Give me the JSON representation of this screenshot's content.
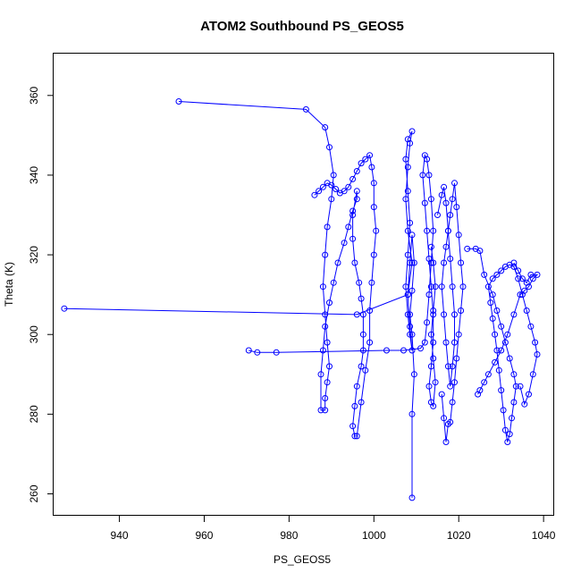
{
  "chart_data": {
    "type": "scatter",
    "title": "ATOM2 Southbound PS_GEOS5",
    "xlabel": "PS_GEOS5",
    "ylabel": "Theta (K)",
    "xlim": [
      924.5,
      1042.5
    ],
    "ylim": [
      254.5,
      370.5
    ],
    "x_ticks": [
      940,
      960,
      980,
      1000,
      1020,
      1040
    ],
    "y_ticks": [
      260,
      280,
      300,
      320,
      340,
      360
    ],
    "grid": false,
    "legend": "none",
    "series_color": "#0000ff",
    "marker": "open-circle",
    "connected": true,
    "series": [
      {
        "x": [
          954,
          984,
          988.5,
          989.5,
          990.5,
          990,
          989,
          988.5,
          988,
          988.5,
          989,
          989.5,
          989,
          988.5,
          988.5,
          987.5,
          987.5,
          988,
          988.5,
          989.5,
          990.5,
          991.5,
          993,
          994,
          995,
          996,
          996,
          995,
          995,
          995.5,
          996.5,
          997,
          997.5,
          997.5,
          997.5,
          997,
          996,
          995.5,
          995,
          995.5,
          996,
          997,
          998,
          999,
          999,
          999.5,
          1000,
          1000.5,
          1000,
          1000,
          999.5,
          999,
          998,
          997,
          996,
          995,
          994,
          993,
          992,
          991,
          990,
          989,
          988,
          987,
          986
        ],
        "y": [
          358.5,
          356.5,
          352,
          347,
          340,
          334,
          327,
          320,
          312,
          305,
          298,
          292,
          288,
          284,
          281,
          281,
          290,
          296,
          302,
          308,
          313,
          318,
          323,
          327,
          331,
          334,
          336,
          330,
          324,
          318,
          313,
          309,
          305,
          300,
          296,
          292,
          287,
          282,
          277,
          274.5,
          274.5,
          283,
          291,
          298,
          306,
          313,
          320,
          326,
          332,
          338,
          342,
          345,
          344,
          343,
          341,
          339,
          337,
          336,
          335.5,
          336.5,
          337.5,
          338,
          337,
          336,
          335
        ]
      },
      {
        "x": [
          927,
          996,
          1008,
          1009,
          1008,
          1007.5,
          1008,
          1008.5,
          1009,
          1008,
          1007.5,
          1008,
          1008.5,
          1008,
          1007.5,
          1008,
          1008.5,
          1009,
          1008.5,
          1008,
          1008.5,
          1009,
          1009.5,
          1009,
          1008.5,
          1009,
          1009.5,
          1009,
          1009
        ],
        "y": [
          306.5,
          305,
          310,
          318,
          326,
          334,
          342,
          348,
          351,
          349,
          344,
          336,
          328,
          320,
          312,
          305,
          300,
          296,
          302,
          310,
          318,
          325,
          318,
          311,
          305,
          300,
          290,
          280,
          259
        ]
      },
      {
        "x": [
          970.5,
          972.5,
          977,
          1003,
          1007,
          1011,
          1012,
          1012.5,
          1013,
          1013.5,
          1014,
          1013.5,
          1013,
          1012.5,
          1012,
          1011.5,
          1012,
          1012.5,
          1013,
          1013.5,
          1014,
          1014,
          1013.5,
          1013,
          1013.5,
          1014,
          1014.5,
          1014,
          1013.5,
          1014,
          1014.5,
          1014,
          1013.5
        ],
        "y": [
          296,
          295.5,
          295.5,
          296,
          296,
          296.5,
          298,
          303,
          310,
          318,
          326,
          334,
          340,
          344,
          345,
          340,
          333,
          326,
          319,
          312,
          305,
          298,
          292,
          287,
          283,
          282,
          288,
          294,
          300,
          306,
          312,
          318,
          322
        ]
      },
      {
        "x": [
          1015,
          1016,
          1016.5,
          1017,
          1017.5,
          1018,
          1018.5,
          1019,
          1019,
          1018.5,
          1018,
          1017.5,
          1017,
          1016.5,
          1016,
          1016.5,
          1017,
          1017.5,
          1018,
          1018.5,
          1019,
          1019.5,
          1020,
          1020.5,
          1021,
          1020.5,
          1020,
          1019.5,
          1019,
          1018.5,
          1018,
          1017.5,
          1017,
          1016.5,
          1016
        ],
        "y": [
          330,
          335,
          337,
          333,
          326,
          319,
          312,
          305,
          298,
          292,
          287,
          292,
          298,
          305,
          312,
          318,
          322,
          326,
          330,
          334,
          338,
          332,
          325,
          318,
          312,
          306,
          300,
          294,
          288,
          283,
          278,
          277.5,
          273,
          279,
          285
        ]
      },
      {
        "x": [
          1022,
          1024,
          1025,
          1026,
          1028,
          1029,
          1030,
          1031,
          1032,
          1033,
          1033.5,
          1033,
          1032.5,
          1032,
          1031.5,
          1031,
          1030.5,
          1030,
          1029.5,
          1029,
          1028.5,
          1028,
          1027.5,
          1027,
          1028,
          1029,
          1030,
          1031,
          1032,
          1033,
          1034,
          1035,
          1036,
          1037,
          1038,
          1038.5,
          1037.5,
          1036.5,
          1035.5,
          1034.5
        ],
        "y": [
          321.5,
          321.5,
          321,
          315,
          310,
          306,
          302,
          298,
          294,
          290,
          287,
          283,
          279,
          275,
          273,
          276,
          281,
          286,
          291,
          296,
          300,
          304,
          308,
          312,
          314,
          315,
          316,
          317,
          317.5,
          317,
          314,
          310,
          306,
          302,
          298,
          295,
          290,
          285,
          282.5,
          287
        ]
      },
      {
        "x": [
          1033,
          1034,
          1035,
          1036,
          1037,
          1038.5,
          1037.5,
          1036.5,
          1035.5,
          1034.5,
          1033,
          1031.5,
          1030,
          1028.5,
          1027,
          1026,
          1025,
          1024.5
        ],
        "y": [
          318,
          316,
          314,
          313,
          315,
          315,
          314,
          312,
          311,
          310,
          305,
          300,
          296,
          293,
          290,
          288,
          286,
          285
        ]
      }
    ]
  }
}
